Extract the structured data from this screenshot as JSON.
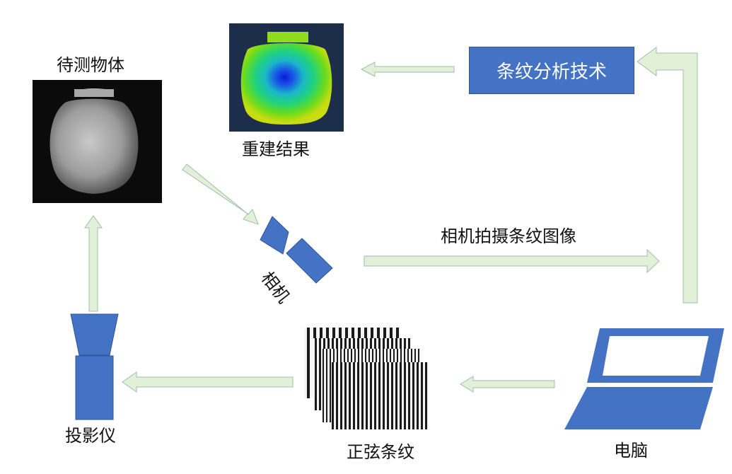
{
  "labels": {
    "object": "待测物体",
    "reconstruction": "重建结果",
    "technique": "条纹分析技术",
    "capture": "相机拍摄条纹图像",
    "camera": "相机",
    "projector": "投影仪",
    "fringes": "正弦条纹",
    "computer": "电脑"
  },
  "colors": {
    "device_blue": "#4472c4",
    "arrow_fill": "#e2efd9",
    "arrow_stroke": "#9fbfa8",
    "photo_bg": "#0b0b0b",
    "depth_bg": "#1c2e4a"
  },
  "icons": {
    "object": "vase-photo",
    "reconstruction": "depth-map-vase",
    "camera": "camera-icon",
    "projector": "projector-icon",
    "fringes": "sinusoidal-fringe-stack",
    "computer": "laptop-icon"
  }
}
